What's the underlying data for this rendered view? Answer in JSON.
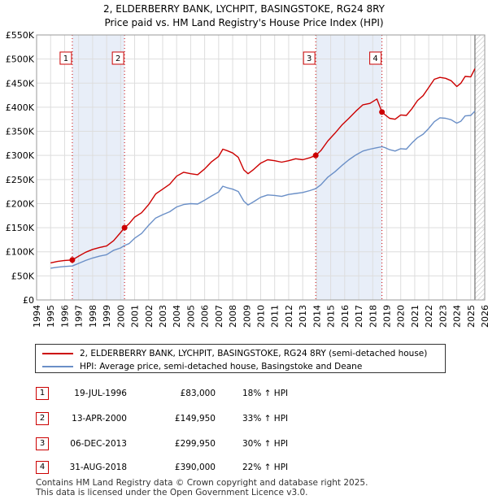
{
  "header": {
    "title_line1": "2, ELDERBERRY BANK, LYCHPIT, BASINGSTOKE, RG24 8RY",
    "title_line2": "Price paid vs. HM Land Registry's House Price Index (HPI)"
  },
  "colors": {
    "price_line": "#cc0000",
    "hpi_line": "#6a8fc7",
    "shade": "#e8eef8",
    "marker_border": "#cc0000"
  },
  "legend": {
    "price_label": "2, ELDERBERRY BANK, LYCHPIT, BASINGSTOKE, RG24 8RY (semi-detached house)",
    "hpi_label": "HPI: Average price, semi-detached house, Basingstoke and Deane"
  },
  "transactions": [
    {
      "num": "1",
      "date": "19-JUL-1996",
      "price": "£83,000",
      "hpi": "18% ↑ HPI"
    },
    {
      "num": "2",
      "date": "13-APR-2000",
      "price": "£149,950",
      "hpi": "33% ↑ HPI"
    },
    {
      "num": "3",
      "date": "06-DEC-2013",
      "price": "£299,950",
      "hpi": "30% ↑ HPI"
    },
    {
      "num": "4",
      "date": "31-AUG-2018",
      "price": "£390,000",
      "hpi": "22% ↑ HPI"
    }
  ],
  "footer": {
    "line1": "Contains HM Land Registry data © Crown copyright and database right 2025.",
    "line2": "This data is licensed under the Open Government Licence v3.0."
  },
  "chart_data": {
    "type": "line",
    "title": "2, ELDERBERRY BANK, LYCHPIT, BASINGSTOKE, RG24 8RY",
    "subtitle": "Price paid vs. HM Land Registry's House Price Index (HPI)",
    "xlabel": "",
    "ylabel": "",
    "xlim": [
      1994,
      2026
    ],
    "ylim": [
      0,
      550000
    ],
    "x_ticks": [
      1994,
      1995,
      1996,
      1997,
      1998,
      1999,
      2000,
      2001,
      2002,
      2003,
      2004,
      2005,
      2006,
      2007,
      2008,
      2009,
      2010,
      2011,
      2012,
      2013,
      2014,
      2015,
      2016,
      2017,
      2018,
      2019,
      2020,
      2021,
      2022,
      2023,
      2024,
      2025,
      2026
    ],
    "x_tick_labels": [
      "1994",
      "1995",
      "1996",
      "1997",
      "1998",
      "1999",
      "2000",
      "2001",
      "2002",
      "2003",
      "2004",
      "2005",
      "2006",
      "2007",
      "2008",
      "2009",
      "2010",
      "2011",
      "2012",
      "2013",
      "2014",
      "2015",
      "2016",
      "2017",
      "2018",
      "2019",
      "2020",
      "2021",
      "2022",
      "2023",
      "2024",
      "2025",
      "2026"
    ],
    "y_ticks": [
      0,
      50000,
      100000,
      150000,
      200000,
      250000,
      300000,
      350000,
      400000,
      450000,
      500000,
      550000
    ],
    "y_tick_labels": [
      "£0",
      "£50K",
      "£100K",
      "£150K",
      "£200K",
      "£250K",
      "£300K",
      "£350K",
      "£400K",
      "£450K",
      "£500K",
      "£550K"
    ],
    "grid": true,
    "data_start": 1995.0,
    "data_end": 2025.3,
    "shaded_ranges": [
      [
        1996.55,
        2000.28
      ],
      [
        2013.93,
        2018.66
      ]
    ],
    "sales": [
      {
        "label": "1",
        "x": 1996.55,
        "y": 83000
      },
      {
        "label": "2",
        "x": 2000.28,
        "y": 149950
      },
      {
        "label": "3",
        "x": 2013.93,
        "y": 299950
      },
      {
        "label": "4",
        "x": 2018.66,
        "y": 390000
      }
    ],
    "series": [
      {
        "name": "2, ELDERBERRY BANK, LYCHPIT, BASINGSTOKE, RG24 8RY (semi-detached house)",
        "x": [
          1995.0,
          1995.5,
          1996.0,
          1996.55,
          1997.0,
          1997.5,
          1998.0,
          1998.5,
          1999.0,
          1999.5,
          2000.0,
          2000.28,
          2000.6,
          2001.0,
          2001.5,
          2002.0,
          2002.5,
          2003.0,
          2003.5,
          2004.0,
          2004.5,
          2005.0,
          2005.5,
          2006.0,
          2006.5,
          2007.0,
          2007.3,
          2007.6,
          2008.0,
          2008.4,
          2008.8,
          2009.1,
          2009.5,
          2010.0,
          2010.5,
          2011.0,
          2011.5,
          2012.0,
          2012.5,
          2013.0,
          2013.5,
          2013.93,
          2014.3,
          2014.8,
          2015.3,
          2015.8,
          2016.3,
          2016.8,
          2017.3,
          2017.8,
          2018.3,
          2018.66,
          2018.9,
          2019.2,
          2019.6,
          2020.0,
          2020.4,
          2020.8,
          2021.2,
          2021.6,
          2022.0,
          2022.4,
          2022.8,
          2023.2,
          2023.6,
          2024.0,
          2024.3,
          2024.6,
          2025.0,
          2025.3
        ],
        "values": [
          77000,
          80000,
          82000,
          83000,
          91000,
          99000,
          105000,
          109000,
          112000,
          123000,
          140000,
          149950,
          158000,
          172000,
          181000,
          198000,
          220000,
          230000,
          240000,
          257000,
          265000,
          262000,
          260000,
          272000,
          287000,
          298000,
          313000,
          310000,
          305000,
          296000,
          270000,
          262000,
          271000,
          284000,
          291000,
          289000,
          286000,
          289000,
          293000,
          291000,
          295000,
          299950,
          310000,
          330000,
          346000,
          363000,
          377000,
          392000,
          405000,
          408000,
          417000,
          390000,
          384000,
          377000,
          375000,
          384000,
          383000,
          397000,
          414000,
          424000,
          441000,
          458000,
          462000,
          460000,
          455000,
          443000,
          450000,
          464000,
          463000,
          480000
        ]
      },
      {
        "name": "HPI: Average price, semi-detached house, Basingstoke and Deane",
        "x": [
          1995.0,
          1995.5,
          1996.0,
          1996.55,
          1997.0,
          1997.5,
          1998.0,
          1998.5,
          1999.0,
          1999.5,
          2000.0,
          2000.28,
          2000.6,
          2001.0,
          2001.5,
          2002.0,
          2002.5,
          2003.0,
          2003.5,
          2004.0,
          2004.5,
          2005.0,
          2005.5,
          2006.0,
          2006.5,
          2007.0,
          2007.3,
          2007.6,
          2008.0,
          2008.4,
          2008.8,
          2009.1,
          2009.5,
          2010.0,
          2010.5,
          2011.0,
          2011.5,
          2012.0,
          2012.5,
          2013.0,
          2013.5,
          2013.93,
          2014.3,
          2014.8,
          2015.3,
          2015.8,
          2016.3,
          2016.8,
          2017.3,
          2017.8,
          2018.3,
          2018.66,
          2018.9,
          2019.2,
          2019.6,
          2020.0,
          2020.4,
          2020.8,
          2021.2,
          2021.6,
          2022.0,
          2022.4,
          2022.8,
          2023.2,
          2023.6,
          2024.0,
          2024.3,
          2024.6,
          2025.0,
          2025.3
        ],
        "values": [
          66000,
          68000,
          69500,
          70500,
          76000,
          82000,
          87000,
          91000,
          94000,
          103000,
          108000,
          113000,
          117000,
          128000,
          138000,
          155000,
          170000,
          177000,
          183000,
          193000,
          198000,
          200000,
          199000,
          207000,
          216000,
          224000,
          236000,
          233000,
          230000,
          225000,
          205000,
          197000,
          204000,
          213000,
          218000,
          217000,
          215000,
          219000,
          221000,
          223000,
          227000,
          231000,
          239000,
          255000,
          266000,
          279000,
          291000,
          301000,
          309000,
          313000,
          316000,
          318000,
          316000,
          312000,
          309000,
          314000,
          313000,
          326000,
          337000,
          344000,
          356000,
          370000,
          378000,
          377000,
          374000,
          367000,
          371000,
          382000,
          383000,
          392000
        ]
      }
    ]
  }
}
